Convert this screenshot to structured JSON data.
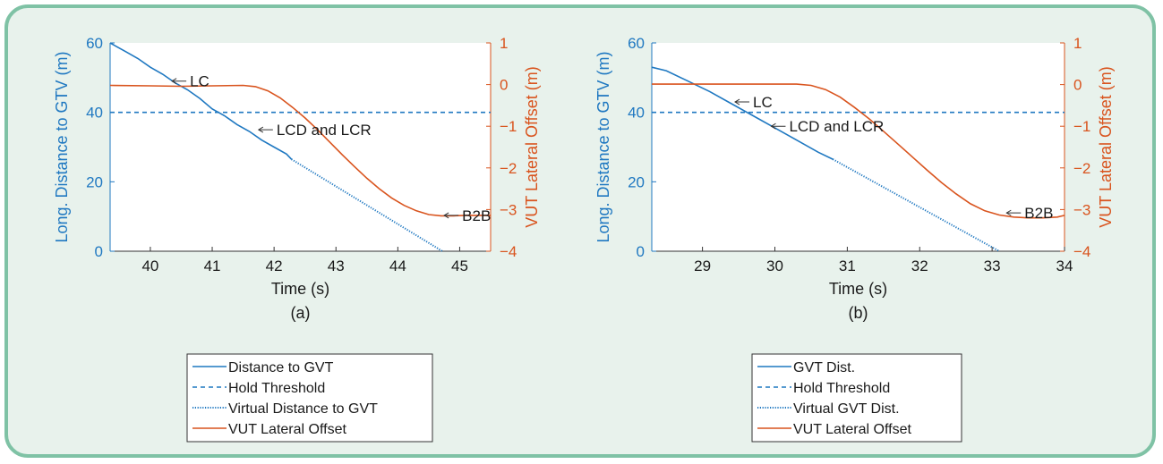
{
  "colors": {
    "frame_border": "#7fc2a5",
    "frame_bg": "#e8f2ec",
    "blue": "#1f78c1",
    "orange": "#d9541e"
  },
  "chart_data": [
    {
      "type": "line",
      "caption": "(a)",
      "xlabel": "Time (s)",
      "ylabel_left": "Long. Distance to GTV (m)",
      "ylabel_right": "VUT Lateral Offset (m)",
      "xlim": [
        39.35,
        45.5
      ],
      "ylim_left": [
        0,
        60
      ],
      "ylim_right": [
        -4,
        1
      ],
      "xticks": [
        40,
        41,
        42,
        43,
        44,
        45
      ],
      "yticks_left": [
        0,
        20,
        40,
        60
      ],
      "yticks_right": [
        1,
        0,
        -1,
        -2,
        -3,
        -4
      ],
      "grid": false,
      "series": [
        {
          "name": "Distance to GVT",
          "axis": "left",
          "style": "solid",
          "color": "#1f78c1",
          "x": [
            39.35,
            39.45,
            39.6,
            39.8,
            40.0,
            40.2,
            40.4,
            40.6,
            40.8,
            41.0,
            41.2,
            41.4,
            41.6,
            41.8,
            42.0,
            42.2,
            42.28
          ],
          "y": [
            60,
            59,
            57.5,
            55.5,
            53,
            51,
            48.5,
            46.5,
            44,
            41,
            39,
            36.5,
            34.5,
            32,
            30,
            28,
            26.5
          ]
        },
        {
          "name": "Hold Threshold",
          "axis": "left",
          "style": "dashed",
          "color": "#1f78c1",
          "x": [
            39.35,
            45.5
          ],
          "y": [
            40,
            40
          ]
        },
        {
          "name": "Virtual Distance to GVT",
          "axis": "left",
          "style": "dotted",
          "color": "#1f78c1",
          "x": [
            42.28,
            44.72
          ],
          "y": [
            26.5,
            0
          ]
        },
        {
          "name": "VUT Lateral Offset",
          "axis": "right",
          "style": "solid",
          "color": "#d9541e",
          "x": [
            39.35,
            40.0,
            40.5,
            41.0,
            41.5,
            41.7,
            41.9,
            42.1,
            42.3,
            42.5,
            42.7,
            42.9,
            43.1,
            43.3,
            43.5,
            43.7,
            43.9,
            44.1,
            44.3,
            44.5,
            44.7,
            44.9,
            45.1,
            45.3,
            45.5
          ],
          "y": [
            -0.02,
            -0.03,
            -0.04,
            -0.03,
            -0.02,
            -0.05,
            -0.15,
            -0.32,
            -0.55,
            -0.8,
            -1.08,
            -1.38,
            -1.68,
            -1.97,
            -2.25,
            -2.5,
            -2.72,
            -2.9,
            -3.03,
            -3.12,
            -3.15,
            -3.15,
            -3.14,
            -3.14,
            -3.14
          ]
        }
      ],
      "annotations": [
        {
          "text": "LC",
          "x": 40.35,
          "y": 49,
          "axis": "left"
        },
        {
          "text": "LCD and LCR",
          "x": 41.75,
          "y": 35,
          "axis": "left"
        },
        {
          "text": "B2B",
          "x": 44.75,
          "y": -3.14,
          "axis": "right"
        }
      ],
      "legend": [
        "Distance to GVT",
        "Hold Threshold",
        "Virtual Distance to GVT",
        "VUT Lateral Offset"
      ]
    },
    {
      "type": "line",
      "caption": "(b)",
      "xlabel": "Time (s)",
      "ylabel_left": "Long. Distance to GTV (m)",
      "ylabel_right": "VUT Lateral Offset (m)",
      "xlim": [
        28.3,
        34.0
      ],
      "ylim_left": [
        0,
        60
      ],
      "ylim_right": [
        -4,
        1
      ],
      "xticks": [
        29,
        30,
        31,
        32,
        33,
        34
      ],
      "yticks_left": [
        0,
        20,
        40,
        60
      ],
      "yticks_right": [
        1,
        0,
        -1,
        -2,
        -3,
        -4
      ],
      "grid": false,
      "series": [
        {
          "name": "GVT Dist.",
          "axis": "left",
          "style": "solid",
          "color": "#1f78c1",
          "x": [
            28.3,
            28.5,
            28.8,
            29.1,
            29.4,
            29.7,
            30.0,
            30.3,
            30.6,
            30.8
          ],
          "y": [
            53,
            52,
            49,
            46,
            42.5,
            39,
            35.5,
            32,
            28.5,
            26.5
          ]
        },
        {
          "name": "Hold Threshold",
          "axis": "left",
          "style": "dashed",
          "color": "#1f78c1",
          "x": [
            28.3,
            34.0
          ],
          "y": [
            40,
            40
          ]
        },
        {
          "name": "Virtual GVT Dist.",
          "axis": "left",
          "style": "dotted",
          "color": "#1f78c1",
          "x": [
            30.8,
            33.1
          ],
          "y": [
            26.5,
            0
          ]
        },
        {
          "name": "VUT Lateral Offset",
          "axis": "right",
          "style": "solid",
          "color": "#d9541e",
          "x": [
            28.3,
            29.0,
            29.5,
            30.0,
            30.3,
            30.5,
            30.7,
            30.9,
            31.1,
            31.3,
            31.5,
            31.7,
            31.9,
            32.1,
            32.3,
            32.5,
            32.7,
            32.9,
            33.1,
            33.3,
            33.5,
            33.7,
            33.9,
            34.0
          ],
          "y": [
            0.01,
            0.01,
            0.01,
            0.01,
            0.01,
            -0.02,
            -0.12,
            -0.3,
            -0.55,
            -0.82,
            -1.12,
            -1.43,
            -1.74,
            -2.05,
            -2.35,
            -2.62,
            -2.86,
            -3.03,
            -3.13,
            -3.18,
            -3.2,
            -3.2,
            -3.18,
            -3.14
          ]
        }
      ],
      "annotations": [
        {
          "text": "LC",
          "x": 29.45,
          "y": 43,
          "axis": "left"
        },
        {
          "text": "LCD and LCR",
          "x": 29.95,
          "y": 36,
          "axis": "left"
        },
        {
          "text": "B2B",
          "x": 33.2,
          "y": -3.08,
          "axis": "right"
        }
      ],
      "legend": [
        "GVT Dist.",
        "Hold Threshold",
        "Virtual GVT Dist.",
        "VUT Lateral Offset"
      ]
    }
  ]
}
